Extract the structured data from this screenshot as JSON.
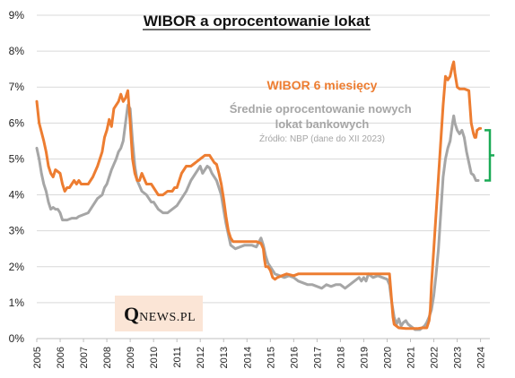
{
  "chart_data": {
    "type": "line",
    "title": "WIBOR a oprocentowanie lokat",
    "xlabel": "",
    "ylabel": "",
    "xlim": [
      2005,
      2024.4
    ],
    "ylim": [
      0,
      9
    ],
    "y_tick_labels": [
      "0%",
      "1%",
      "2%",
      "3%",
      "4%",
      "5%",
      "6%",
      "7%",
      "8%",
      "9%"
    ],
    "x_tick_labels": [
      "2005",
      "2006",
      "2007",
      "2008",
      "2009",
      "2010",
      "2011",
      "2012",
      "2013",
      "2014",
      "2015",
      "2016",
      "2017",
      "2018",
      "2019",
      "2020",
      "2021",
      "2022",
      "2023",
      "2024"
    ],
    "grid": "horizontal",
    "source_note": "Źródło: NBP (dane do XII 2023)",
    "series": [
      {
        "name": "WIBOR 6 miesięcy",
        "color": "#ed7d31",
        "points": [
          [
            2005.0,
            6.6
          ],
          [
            2005.1,
            6.0
          ],
          [
            2005.3,
            5.5
          ],
          [
            2005.4,
            5.2
          ],
          [
            2005.5,
            4.8
          ],
          [
            2005.6,
            4.6
          ],
          [
            2005.7,
            4.5
          ],
          [
            2005.8,
            4.7
          ],
          [
            2005.9,
            4.65
          ],
          [
            2006.0,
            4.6
          ],
          [
            2006.1,
            4.3
          ],
          [
            2006.2,
            4.1
          ],
          [
            2006.3,
            4.2
          ],
          [
            2006.4,
            4.2
          ],
          [
            2006.5,
            4.3
          ],
          [
            2006.6,
            4.4
          ],
          [
            2006.7,
            4.3
          ],
          [
            2006.8,
            4.4
          ],
          [
            2006.9,
            4.3
          ],
          [
            2007.0,
            4.3
          ],
          [
            2007.2,
            4.3
          ],
          [
            2007.4,
            4.5
          ],
          [
            2007.6,
            4.8
          ],
          [
            2007.8,
            5.2
          ],
          [
            2007.9,
            5.6
          ],
          [
            2008.0,
            5.8
          ],
          [
            2008.1,
            6.1
          ],
          [
            2008.2,
            5.9
          ],
          [
            2008.3,
            6.4
          ],
          [
            2008.5,
            6.6
          ],
          [
            2008.6,
            6.8
          ],
          [
            2008.7,
            6.6
          ],
          [
            2008.8,
            6.7
          ],
          [
            2008.9,
            6.9
          ],
          [
            2009.0,
            6.0
          ],
          [
            2009.1,
            5.0
          ],
          [
            2009.2,
            4.6
          ],
          [
            2009.3,
            4.4
          ],
          [
            2009.4,
            4.4
          ],
          [
            2009.5,
            4.6
          ],
          [
            2009.7,
            4.3
          ],
          [
            2009.9,
            4.3
          ],
          [
            2010.0,
            4.2
          ],
          [
            2010.2,
            4.0
          ],
          [
            2010.4,
            4.0
          ],
          [
            2010.6,
            4.1
          ],
          [
            2010.8,
            4.1
          ],
          [
            2010.9,
            4.2
          ],
          [
            2011.0,
            4.2
          ],
          [
            2011.2,
            4.6
          ],
          [
            2011.4,
            4.8
          ],
          [
            2011.6,
            4.8
          ],
          [
            2011.8,
            4.9
          ],
          [
            2011.9,
            4.95
          ],
          [
            2012.0,
            5.0
          ],
          [
            2012.2,
            5.1
          ],
          [
            2012.4,
            5.1
          ],
          [
            2012.5,
            5.0
          ],
          [
            2012.6,
            4.9
          ],
          [
            2012.7,
            4.85
          ],
          [
            2012.8,
            4.6
          ],
          [
            2012.9,
            4.3
          ],
          [
            2013.0,
            3.9
          ],
          [
            2013.1,
            3.4
          ],
          [
            2013.2,
            3.0
          ],
          [
            2013.3,
            2.8
          ],
          [
            2013.4,
            2.7
          ],
          [
            2013.6,
            2.7
          ],
          [
            2013.8,
            2.7
          ],
          [
            2014.0,
            2.7
          ],
          [
            2014.2,
            2.7
          ],
          [
            2014.4,
            2.7
          ],
          [
            2014.6,
            2.65
          ],
          [
            2014.7,
            2.5
          ],
          [
            2014.75,
            2.2
          ],
          [
            2014.8,
            2.0
          ],
          [
            2014.9,
            2.0
          ],
          [
            2015.0,
            1.9
          ],
          [
            2015.1,
            1.7
          ],
          [
            2015.2,
            1.65
          ],
          [
            2015.3,
            1.7
          ],
          [
            2015.5,
            1.75
          ],
          [
            2015.7,
            1.8
          ],
          [
            2016.0,
            1.75
          ],
          [
            2016.2,
            1.8
          ],
          [
            2016.5,
            1.8
          ],
          [
            2017.0,
            1.8
          ],
          [
            2017.5,
            1.8
          ],
          [
            2018.0,
            1.8
          ],
          [
            2018.5,
            1.8
          ],
          [
            2019.0,
            1.8
          ],
          [
            2019.5,
            1.8
          ],
          [
            2020.0,
            1.8
          ],
          [
            2020.1,
            1.8
          ],
          [
            2020.15,
            1.4
          ],
          [
            2020.2,
            1.0
          ],
          [
            2020.25,
            0.6
          ],
          [
            2020.3,
            0.4
          ],
          [
            2020.5,
            0.3
          ],
          [
            2020.8,
            0.28
          ],
          [
            2021.0,
            0.28
          ],
          [
            2021.3,
            0.28
          ],
          [
            2021.5,
            0.3
          ],
          [
            2021.7,
            0.3
          ],
          [
            2021.8,
            0.5
          ],
          [
            2021.85,
            0.8
          ],
          [
            2021.9,
            1.5
          ],
          [
            2022.0,
            2.5
          ],
          [
            2022.1,
            3.5
          ],
          [
            2022.2,
            4.5
          ],
          [
            2022.3,
            5.5
          ],
          [
            2022.4,
            6.5
          ],
          [
            2022.5,
            7.3
          ],
          [
            2022.6,
            7.2
          ],
          [
            2022.7,
            7.3
          ],
          [
            2022.8,
            7.6
          ],
          [
            2022.85,
            7.7
          ],
          [
            2022.9,
            7.4
          ],
          [
            2023.0,
            7.0
          ],
          [
            2023.1,
            6.95
          ],
          [
            2023.3,
            6.95
          ],
          [
            2023.5,
            6.9
          ],
          [
            2023.6,
            6.0
          ],
          [
            2023.7,
            5.7
          ],
          [
            2023.75,
            5.6
          ],
          [
            2023.8,
            5.6
          ],
          [
            2023.85,
            5.8
          ],
          [
            2023.95,
            5.85
          ],
          [
            2024.0,
            5.85
          ]
        ]
      },
      {
        "name": "Średnie oprocentowanie nowych lokat bankowych",
        "color": "#a6a6a6",
        "points": [
          [
            2005.0,
            5.3
          ],
          [
            2005.1,
            5.0
          ],
          [
            2005.2,
            4.6
          ],
          [
            2005.3,
            4.3
          ],
          [
            2005.4,
            4.1
          ],
          [
            2005.5,
            3.8
          ],
          [
            2005.6,
            3.6
          ],
          [
            2005.7,
            3.65
          ],
          [
            2005.8,
            3.6
          ],
          [
            2005.9,
            3.6
          ],
          [
            2006.0,
            3.5
          ],
          [
            2006.1,
            3.3
          ],
          [
            2006.3,
            3.3
          ],
          [
            2006.5,
            3.35
          ],
          [
            2006.7,
            3.35
          ],
          [
            2006.8,
            3.4
          ],
          [
            2007.0,
            3.45
          ],
          [
            2007.2,
            3.5
          ],
          [
            2007.4,
            3.7
          ],
          [
            2007.6,
            3.9
          ],
          [
            2007.8,
            4.0
          ],
          [
            2007.9,
            4.2
          ],
          [
            2008.0,
            4.3
          ],
          [
            2008.2,
            4.7
          ],
          [
            2008.4,
            5.0
          ],
          [
            2008.5,
            5.2
          ],
          [
            2008.6,
            5.3
          ],
          [
            2008.7,
            5.5
          ],
          [
            2008.8,
            6.0
          ],
          [
            2008.9,
            6.5
          ],
          [
            2009.0,
            6.4
          ],
          [
            2009.1,
            5.5
          ],
          [
            2009.2,
            4.8
          ],
          [
            2009.3,
            4.4
          ],
          [
            2009.5,
            4.1
          ],
          [
            2009.7,
            4.0
          ],
          [
            2009.9,
            3.8
          ],
          [
            2010.0,
            3.8
          ],
          [
            2010.2,
            3.6
          ],
          [
            2010.4,
            3.5
          ],
          [
            2010.6,
            3.5
          ],
          [
            2010.8,
            3.6
          ],
          [
            2011.0,
            3.7
          ],
          [
            2011.2,
            3.9
          ],
          [
            2011.4,
            4.1
          ],
          [
            2011.6,
            4.4
          ],
          [
            2011.8,
            4.6
          ],
          [
            2011.9,
            4.7
          ],
          [
            2012.0,
            4.8
          ],
          [
            2012.1,
            4.6
          ],
          [
            2012.2,
            4.7
          ],
          [
            2012.3,
            4.8
          ],
          [
            2012.4,
            4.75
          ],
          [
            2012.5,
            4.6
          ],
          [
            2012.6,
            4.5
          ],
          [
            2012.7,
            4.4
          ],
          [
            2012.8,
            4.2
          ],
          [
            2012.9,
            4.0
          ],
          [
            2013.0,
            3.6
          ],
          [
            2013.1,
            3.2
          ],
          [
            2013.2,
            2.9
          ],
          [
            2013.3,
            2.6
          ],
          [
            2013.5,
            2.5
          ],
          [
            2013.7,
            2.55
          ],
          [
            2013.9,
            2.6
          ],
          [
            2014.0,
            2.6
          ],
          [
            2014.2,
            2.6
          ],
          [
            2014.4,
            2.55
          ],
          [
            2014.6,
            2.8
          ],
          [
            2014.7,
            2.6
          ],
          [
            2014.8,
            2.3
          ],
          [
            2014.9,
            2.1
          ],
          [
            2015.0,
            2.0
          ],
          [
            2015.2,
            1.8
          ],
          [
            2015.4,
            1.75
          ],
          [
            2015.6,
            1.7
          ],
          [
            2015.8,
            1.75
          ],
          [
            2016.0,
            1.7
          ],
          [
            2016.2,
            1.6
          ],
          [
            2016.4,
            1.55
          ],
          [
            2016.6,
            1.5
          ],
          [
            2016.8,
            1.5
          ],
          [
            2017.0,
            1.45
          ],
          [
            2017.2,
            1.4
          ],
          [
            2017.4,
            1.5
          ],
          [
            2017.6,
            1.45
          ],
          [
            2017.8,
            1.5
          ],
          [
            2018.0,
            1.5
          ],
          [
            2018.2,
            1.4
          ],
          [
            2018.4,
            1.5
          ],
          [
            2018.6,
            1.6
          ],
          [
            2018.8,
            1.7
          ],
          [
            2018.9,
            1.6
          ],
          [
            2019.0,
            1.7
          ],
          [
            2019.1,
            1.6
          ],
          [
            2019.2,
            1.8
          ],
          [
            2019.4,
            1.7
          ],
          [
            2019.6,
            1.75
          ],
          [
            2019.8,
            1.7
          ],
          [
            2020.0,
            1.65
          ],
          [
            2020.1,
            1.5
          ],
          [
            2020.2,
            1.0
          ],
          [
            2020.3,
            0.6
          ],
          [
            2020.4,
            0.4
          ],
          [
            2020.5,
            0.55
          ],
          [
            2020.6,
            0.35
          ],
          [
            2020.7,
            0.45
          ],
          [
            2020.8,
            0.5
          ],
          [
            2020.9,
            0.4
          ],
          [
            2021.0,
            0.35
          ],
          [
            2021.2,
            0.25
          ],
          [
            2021.4,
            0.25
          ],
          [
            2021.5,
            0.3
          ],
          [
            2021.6,
            0.35
          ],
          [
            2021.7,
            0.45
          ],
          [
            2021.8,
            0.6
          ],
          [
            2021.9,
            0.8
          ],
          [
            2022.0,
            1.2
          ],
          [
            2022.1,
            1.8
          ],
          [
            2022.2,
            2.5
          ],
          [
            2022.3,
            3.5
          ],
          [
            2022.4,
            4.5
          ],
          [
            2022.5,
            5.0
          ],
          [
            2022.6,
            5.3
          ],
          [
            2022.7,
            5.5
          ],
          [
            2022.8,
            6.0
          ],
          [
            2022.85,
            6.2
          ],
          [
            2022.9,
            6.0
          ],
          [
            2023.0,
            5.8
          ],
          [
            2023.1,
            5.7
          ],
          [
            2023.2,
            5.8
          ],
          [
            2023.3,
            5.6
          ],
          [
            2023.4,
            5.2
          ],
          [
            2023.5,
            4.9
          ],
          [
            2023.6,
            4.6
          ],
          [
            2023.7,
            4.55
          ],
          [
            2023.8,
            4.4
          ],
          [
            2023.9,
            4.4
          ]
        ]
      }
    ],
    "annotation_bracket": {
      "color": "#1aaa55",
      "y_from": 4.4,
      "y_to": 5.8
    }
  },
  "logo": {
    "letter": "Q",
    "rest": "NEWS.PL",
    "background": "#fbe5d6"
  }
}
